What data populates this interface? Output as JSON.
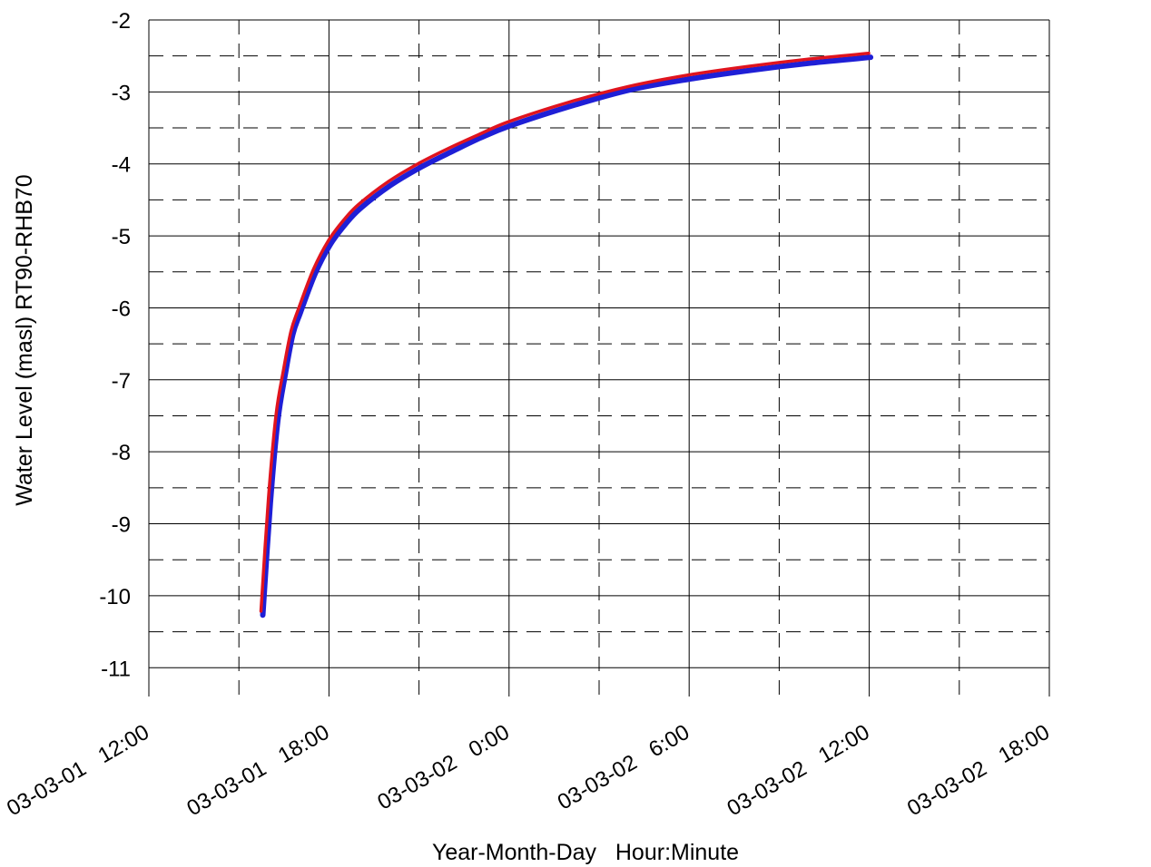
{
  "chart_data": {
    "type": "line",
    "xlabel": "Year-Month-Day   Hour:Minute",
    "ylabel": "Water Level (masl) RT90-RHB70",
    "ylim": [
      -11.4,
      -2
    ],
    "y_ticks": [
      "-2",
      "-3",
      "-4",
      "-5",
      "-6",
      "-7",
      "-8",
      "-9",
      "-10",
      "-11"
    ],
    "x_ticks": [
      "03-03-01   12:00",
      "03-03-01   18:00",
      "03-03-02   0:00",
      "03-03-02   6:00",
      "03-03-02   12:00",
      "03-03-02   18:00"
    ],
    "x_hour_range": [
      12,
      42
    ],
    "grid": "major solid, minor dashed",
    "series": [
      {
        "color": "#1f1fd6",
        "x": [
          15.75,
          16.0,
          16.25,
          16.5,
          16.75,
          17.0,
          17.5,
          18.0,
          18.5,
          19.0,
          20.0,
          21.0,
          22.0,
          23.0,
          24.0,
          26.0,
          28.0,
          30.0,
          32.0,
          34.0,
          36.0
        ],
        "values": [
          -10.25,
          -8.7,
          -7.55,
          -6.9,
          -6.35,
          -6.05,
          -5.5,
          -5.1,
          -4.82,
          -4.6,
          -4.28,
          -4.03,
          -3.82,
          -3.62,
          -3.45,
          -3.18,
          -2.95,
          -2.8,
          -2.68,
          -2.58,
          -2.5
        ]
      },
      {
        "color": "#e0141e",
        "x": [
          15.75,
          16.0,
          16.25,
          16.5,
          16.75,
          17.0,
          17.5,
          18.0,
          18.5,
          19.0,
          20.0,
          21.0,
          22.0,
          23.0,
          24.0,
          26.0,
          28.0,
          30.0,
          32.0,
          34.0,
          36.0
        ],
        "values": [
          -10.22,
          -8.65,
          -7.5,
          -6.87,
          -6.33,
          -6.02,
          -5.47,
          -5.07,
          -4.79,
          -4.57,
          -4.25,
          -4.0,
          -3.79,
          -3.6,
          -3.42,
          -3.15,
          -2.93,
          -2.77,
          -2.65,
          -2.55,
          -2.47
        ]
      }
    ]
  }
}
